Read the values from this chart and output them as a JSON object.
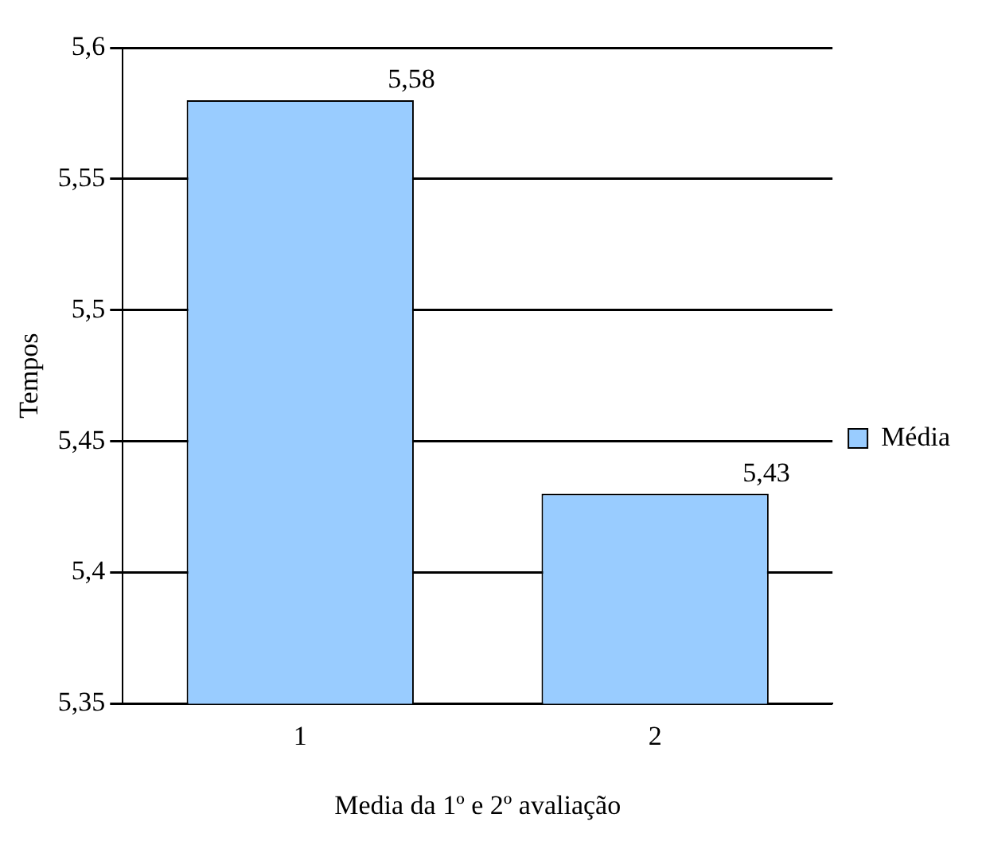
{
  "chart_data": {
    "type": "bar",
    "xlabel": "Media da 1º e 2º avaliação",
    "ylabel": "Tempos",
    "categories": [
      "1",
      "2"
    ],
    "series": [
      {
        "name": "Média",
        "color": "#99ccff",
        "values": [
          5.58,
          5.43
        ],
        "value_labels": [
          "5,58",
          "5,43"
        ]
      }
    ],
    "ylim": [
      5.35,
      5.6
    ],
    "yticks": [
      {
        "value": 5.35,
        "label": "5,35"
      },
      {
        "value": 5.4,
        "label": "5,4"
      },
      {
        "value": 5.45,
        "label": "5,45"
      },
      {
        "value": 5.5,
        "label": "5,5"
      },
      {
        "value": 5.55,
        "label": "5,55"
      },
      {
        "value": 5.6,
        "label": "5,6"
      }
    ],
    "grid": "y",
    "legend": "right"
  }
}
